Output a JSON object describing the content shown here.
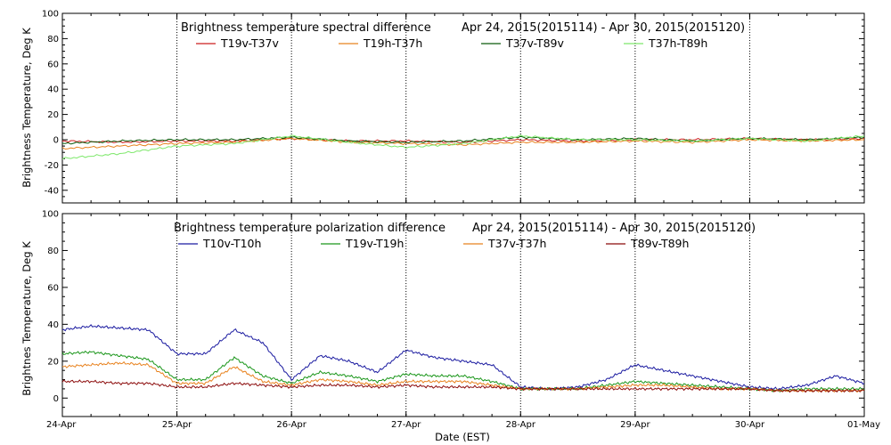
{
  "chart_data": [
    {
      "type": "line",
      "title": "Brightness temperature spectral difference",
      "date_range": "Apr 24, 2015(2015114) - Apr 30, 2015(2015120)",
      "ylabel": "Brightness Temperature, Deg K",
      "xlabel": "",
      "ylim": [
        -50,
        100
      ],
      "yticks": [
        -40,
        -20,
        0,
        20,
        40,
        60,
        80,
        100
      ],
      "xlim": [
        "2015-04-24",
        "2015-05-01"
      ],
      "xticks": [
        "2015-04-24",
        "2015-04-25",
        "2015-04-26",
        "2015-04-27",
        "2015-04-28",
        "2015-04-29",
        "2015-04-30",
        "2015-05-01"
      ],
      "grid": "vertical-dotted",
      "legend_placement": "top",
      "series": [
        {
          "name": "T19v-T37v",
          "color": "#cc1f1f",
          "x": [
            "2015-04-24",
            "2015-04-24T12:00",
            "2015-04-25",
            "2015-04-25T12:00",
            "2015-04-26",
            "2015-04-26T12:00",
            "2015-04-27",
            "2015-04-27T12:00",
            "2015-04-28",
            "2015-04-28T12:00",
            "2015-04-29",
            "2015-04-29T12:00",
            "2015-04-30",
            "2015-04-30T12:00",
            "2015-05-01"
          ],
          "values": [
            -1,
            -2,
            -1,
            -1,
            1,
            -1,
            -1,
            -2,
            0,
            -1,
            0,
            0,
            1,
            0,
            1
          ]
        },
        {
          "name": "T19h-T37h",
          "color": "#e8821e",
          "x": [
            "2015-04-24",
            "2015-04-24T12:00",
            "2015-04-25",
            "2015-04-25T12:00",
            "2015-04-26",
            "2015-04-26T12:00",
            "2015-04-27",
            "2015-04-27T12:00",
            "2015-04-28",
            "2015-04-28T12:00",
            "2015-04-29",
            "2015-04-29T12:00",
            "2015-04-30",
            "2015-04-30T12:00",
            "2015-05-01"
          ],
          "values": [
            -7,
            -5,
            -3,
            -2,
            1,
            -2,
            -3,
            -4,
            -2,
            -2,
            -1,
            -2,
            0,
            -1,
            0
          ]
        },
        {
          "name": "T37v-T89v",
          "color": "#0a5a0a",
          "x": [
            "2015-04-24",
            "2015-04-24T12:00",
            "2015-04-25",
            "2015-04-25T12:00",
            "2015-04-26",
            "2015-04-26T12:00",
            "2015-04-27",
            "2015-04-27T12:00",
            "2015-04-28",
            "2015-04-28T12:00",
            "2015-04-29",
            "2015-04-29T12:00",
            "2015-04-30",
            "2015-04-30T12:00",
            "2015-05-01"
          ],
          "values": [
            -3,
            -1,
            0,
            0,
            2,
            -1,
            -2,
            -1,
            2,
            0,
            1,
            -1,
            1,
            0,
            2
          ]
        },
        {
          "name": "T37h-T89h",
          "color": "#7de86a",
          "x": [
            "2015-04-24",
            "2015-04-24T12:00",
            "2015-04-25",
            "2015-04-25T12:00",
            "2015-04-26",
            "2015-04-26T12:00",
            "2015-04-27",
            "2015-04-27T12:00",
            "2015-04-28",
            "2015-04-28T12:00",
            "2015-04-29",
            "2015-04-29T12:00",
            "2015-04-30",
            "2015-04-30T12:00",
            "2015-05-01"
          ],
          "values": [
            -15,
            -11,
            -5,
            -3,
            3,
            -2,
            -6,
            -3,
            3,
            0,
            0,
            -1,
            1,
            -1,
            3
          ]
        }
      ]
    },
    {
      "type": "line",
      "title": "Brightness temperature polarization difference",
      "date_range": "Apr 24, 2015(2015114) - Apr 30, 2015(2015120)",
      "ylabel": "Brightnes Temperature, Deg K",
      "xlabel": "Date (EST)",
      "ylim": [
        -10,
        100
      ],
      "yticks": [
        0,
        20,
        40,
        60,
        80,
        100
      ],
      "xlim": [
        "2015-04-24",
        "2015-05-01"
      ],
      "xticks": [
        "2015-04-24",
        "2015-04-25",
        "2015-04-26",
        "2015-04-27",
        "2015-04-28",
        "2015-04-29",
        "2015-04-30",
        "2015-05-01"
      ],
      "xtick_labels": [
        "24-Apr",
        "25-Apr",
        "26-Apr",
        "27-Apr",
        "28-Apr",
        "29-Apr",
        "30-Apr",
        "01-May"
      ],
      "grid": "vertical-dotted",
      "legend_placement": "top",
      "series": [
        {
          "name": "T10v-T10h",
          "color": "#1a1aa0",
          "x": [
            "2015-04-24",
            "2015-04-24T06:00",
            "2015-04-24T12:00",
            "2015-04-24T18:00",
            "2015-04-25",
            "2015-04-25T06:00",
            "2015-04-25T12:00",
            "2015-04-25T18:00",
            "2015-04-26",
            "2015-04-26T06:00",
            "2015-04-26T12:00",
            "2015-04-26T18:00",
            "2015-04-27",
            "2015-04-27T06:00",
            "2015-04-27T12:00",
            "2015-04-27T18:00",
            "2015-04-28",
            "2015-04-28T06:00",
            "2015-04-28T12:00",
            "2015-04-28T18:00",
            "2015-04-29",
            "2015-04-29T06:00",
            "2015-04-29T12:00",
            "2015-04-29T18:00",
            "2015-04-30",
            "2015-04-30T06:00",
            "2015-04-30T12:00",
            "2015-04-30T18:00",
            "2015-05-01"
          ],
          "values": [
            37,
            39,
            38,
            37,
            24,
            24,
            37,
            30,
            10,
            23,
            20,
            14,
            26,
            22,
            20,
            18,
            6,
            5,
            6,
            10,
            18,
            15,
            12,
            9,
            6,
            5,
            7,
            12,
            8
          ]
        },
        {
          "name": "T19v-T19h",
          "color": "#1a961a",
          "x": [
            "2015-04-24",
            "2015-04-24T06:00",
            "2015-04-24T12:00",
            "2015-04-24T18:00",
            "2015-04-25",
            "2015-04-25T06:00",
            "2015-04-25T12:00",
            "2015-04-25T18:00",
            "2015-04-26",
            "2015-04-26T06:00",
            "2015-04-26T12:00",
            "2015-04-26T18:00",
            "2015-04-27",
            "2015-04-27T06:00",
            "2015-04-27T12:00",
            "2015-04-27T18:00",
            "2015-04-28",
            "2015-04-28T06:00",
            "2015-04-28T12:00",
            "2015-04-28T18:00",
            "2015-04-29",
            "2015-04-29T06:00",
            "2015-04-29T12:00",
            "2015-04-29T18:00",
            "2015-04-30",
            "2015-04-30T06:00",
            "2015-04-30T12:00",
            "2015-04-30T18:00",
            "2015-05-01"
          ],
          "values": [
            24,
            25,
            23,
            21,
            10,
            10,
            22,
            12,
            8,
            14,
            12,
            9,
            13,
            12,
            12,
            9,
            5,
            5,
            5,
            7,
            9,
            8,
            7,
            6,
            5,
            4,
            5,
            5,
            5
          ]
        },
        {
          "name": "T37v-T37h",
          "color": "#e8821e",
          "x": [
            "2015-04-24",
            "2015-04-24T06:00",
            "2015-04-24T12:00",
            "2015-04-24T18:00",
            "2015-04-25",
            "2015-04-25T06:00",
            "2015-04-25T12:00",
            "2015-04-25T18:00",
            "2015-04-26",
            "2015-04-26T06:00",
            "2015-04-26T12:00",
            "2015-04-26T18:00",
            "2015-04-27",
            "2015-04-27T06:00",
            "2015-04-27T12:00",
            "2015-04-27T18:00",
            "2015-04-28",
            "2015-04-28T06:00",
            "2015-04-28T12:00",
            "2015-04-28T18:00",
            "2015-04-29",
            "2015-04-29T06:00",
            "2015-04-29T12:00",
            "2015-04-29T18:00",
            "2015-04-30",
            "2015-04-30T06:00",
            "2015-04-30T12:00",
            "2015-04-30T18:00",
            "2015-05-01"
          ],
          "values": [
            17,
            18,
            19,
            18,
            8,
            8,
            17,
            9,
            7,
            10,
            9,
            7,
            9,
            9,
            9,
            7,
            5,
            5,
            5,
            6,
            7,
            7,
            6,
            5,
            5,
            4,
            4,
            4,
            4
          ]
        },
        {
          "name": "T89v-T89h",
          "color": "#8b0a0a",
          "x": [
            "2015-04-24",
            "2015-04-24T06:00",
            "2015-04-24T12:00",
            "2015-04-24T18:00",
            "2015-04-25",
            "2015-04-25T06:00",
            "2015-04-25T12:00",
            "2015-04-25T18:00",
            "2015-04-26",
            "2015-04-26T06:00",
            "2015-04-26T12:00",
            "2015-04-26T18:00",
            "2015-04-27",
            "2015-04-27T06:00",
            "2015-04-27T12:00",
            "2015-04-27T18:00",
            "2015-04-28",
            "2015-04-28T06:00",
            "2015-04-28T12:00",
            "2015-04-28T18:00",
            "2015-04-29",
            "2015-04-29T06:00",
            "2015-04-29T12:00",
            "2015-04-29T18:00",
            "2015-04-30",
            "2015-04-30T06:00",
            "2015-04-30T12:00",
            "2015-04-30T18:00",
            "2015-05-01"
          ],
          "values": [
            9,
            9,
            8,
            8,
            6,
            6,
            8,
            7,
            6,
            7,
            7,
            6,
            7,
            6,
            6,
            6,
            5,
            5,
            5,
            5,
            5,
            5,
            5,
            5,
            5,
            4,
            4,
            4,
            4
          ]
        }
      ]
    }
  ]
}
